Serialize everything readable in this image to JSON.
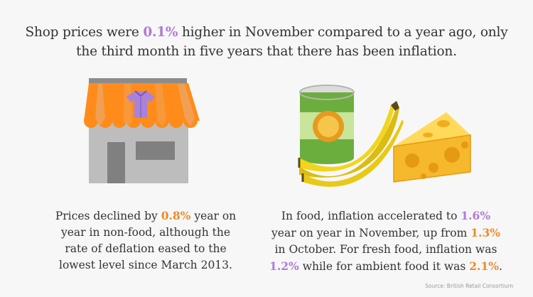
{
  "headline": {
    "part1": "Shop prices were ",
    "value1": "0.1%",
    "part2": " higher in November compared to a year ago, only the third month in five years that there has been inflation."
  },
  "left_panel": {
    "part1": "Prices declined by ",
    "value1": "0.8%",
    "part2": " year on year in non-food, although the rate of deflation eased to the lowest level since March 2013."
  },
  "right_panel": {
    "part1": "In food, inflation accelerated to ",
    "value1": "1.6%",
    "part2": " year on year in November, up from ",
    "value2": "1.3%",
    "part3": " in October. For fresh food, inflation was ",
    "value3": "1.2%",
    "part4": " while for ambient food it was ",
    "value4": "2.1%",
    "part5": "."
  },
  "source": "Source: British Retail Consortium",
  "icons": {
    "shop": "shop-icon",
    "shirt": "shirt-icon",
    "can": "tin-can-icon",
    "bananas": "bananas-icon",
    "cheese": "cheese-icon"
  },
  "colors": {
    "highlight_purple": "#b07ad8",
    "highlight_orange": "#ec8b28",
    "awning": "#ff8c1a",
    "building": "#bdbdbd",
    "can_green": "#6cae3e",
    "banana": "#f2d51c",
    "cheese": "#f6b82c"
  }
}
